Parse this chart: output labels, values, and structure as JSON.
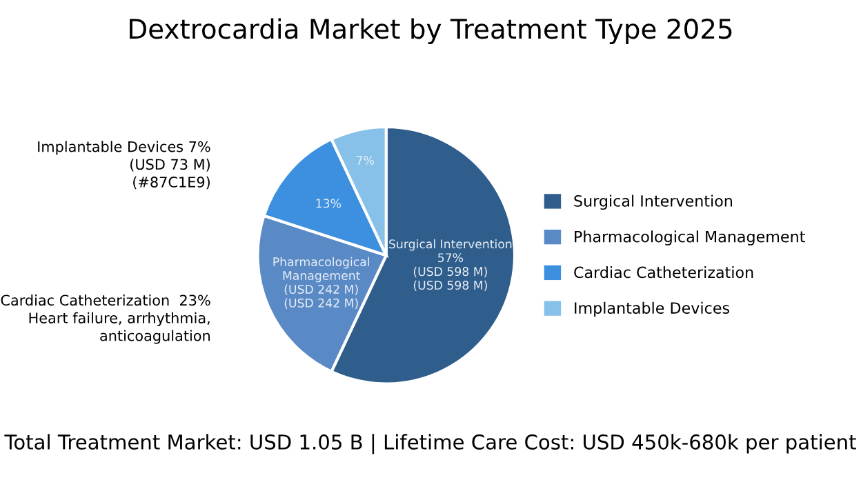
{
  "chart_data": {
    "type": "pie",
    "title": "Dextrocardia Market by Treatment Type 2025",
    "categories": [
      "Surgical Intervention",
      "Pharmacological Management",
      "Cardiac Catheterization",
      "Implantable Devices"
    ],
    "values": [
      57,
      23,
      13,
      7
    ],
    "colors": [
      "#2f5d8c",
      "#5a8ac6",
      "#3d8fe0",
      "#87c1e9"
    ],
    "value_labels": [
      "Surgical Intervention\n57%\n(USD 598 M)\n(USD 598 M)",
      "Pharmacological\nManagement\n(USD 242 M)\n(USD 242 M)",
      "13%",
      "7%"
    ],
    "annotations": [
      "Implantable Devices 7%\n(USD 73 M)\n(#87C1E9)",
      "Cardiac Catheterization  23%\nHeart failure, arrhythmia,\nanticoagulation",
      "Total Treatment Market: USD 1.05 B | Lifetime Care Cost: USD 450k-680k per patient"
    ],
    "legend": "right"
  }
}
